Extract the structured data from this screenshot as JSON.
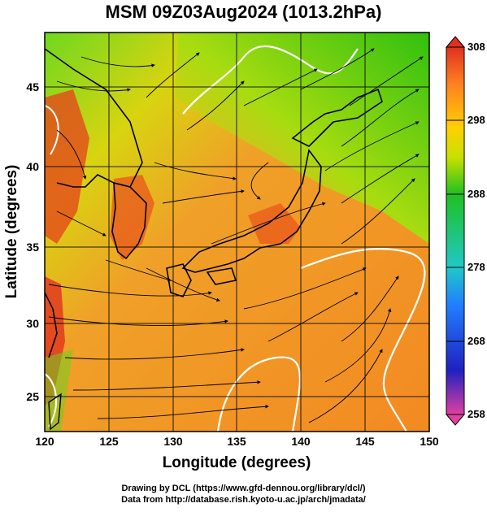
{
  "title": "MSM 09Z03Aug2024 (1013.2hPa)",
  "map": {
    "x_axis": {
      "label": "Longitude (degrees)",
      "range": [
        120,
        150
      ],
      "ticks": [
        "120",
        "125",
        "130",
        "135",
        "140",
        "145",
        "150"
      ],
      "tick_values": [
        120,
        125,
        130,
        135,
        140,
        145,
        150
      ]
    },
    "y_axis": {
      "label": "Latitude  (degrees)",
      "range": [
        22.4,
        47.6
      ],
      "ticks": [
        "25",
        "30",
        "35",
        "40",
        "45"
      ],
      "tick_values": [
        25,
        30,
        35,
        40,
        45
      ]
    },
    "grid": true,
    "colors": {
      "cold": "#22c000",
      "mild": "#c8e000",
      "warm": "#f39a22",
      "hot": "#e03818",
      "coast": "#000000",
      "contour": "#ffffff"
    }
  },
  "colorbar": {
    "tick_labels": [
      "308",
      "298",
      "288",
      "278",
      "268",
      "258"
    ],
    "tick_values": [
      308,
      298,
      288,
      278,
      268,
      258
    ],
    "range": [
      258,
      308
    ],
    "stops": [
      "#e040a0",
      "#2020c0",
      "#2080ff",
      "#20c8c8",
      "#20c020",
      "#c8e000",
      "#ffd000",
      "#ff8020",
      "#e03020"
    ]
  },
  "footer": {
    "line1": "Drawing by DCL (https://www.gfd-dennou.org/library/dcl/)",
    "line2": "Data from http://database.rish.kyoto-u.ac.jp/arch/jmadata/"
  }
}
